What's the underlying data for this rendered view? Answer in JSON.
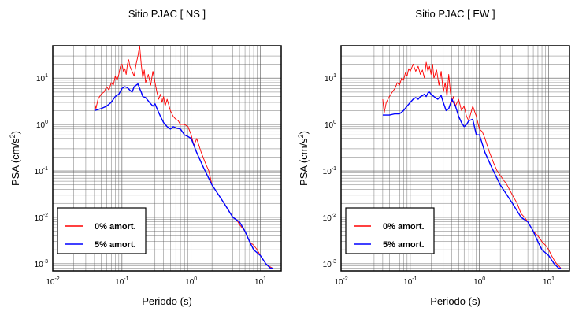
{
  "chart_data": [
    {
      "type": "line",
      "title": "Sitio PJAC [ NS ]",
      "xlabel": "Periodo (s)",
      "ylabel_base": "PSA (cm/s",
      "ylabel_sup": "2",
      "ylabel_end": ")",
      "xscale": "log",
      "yscale": "log",
      "xlim": [
        0.01,
        20
      ],
      "ylim": [
        0.0007,
        50
      ],
      "grid": true,
      "legend_position": "bottom-left",
      "x_ticks": [
        {
          "base": "10",
          "exp": "-2"
        },
        {
          "base": "10",
          "exp": "-1"
        },
        {
          "base": "10",
          "exp": "0"
        },
        {
          "base": "10",
          "exp": "1"
        }
      ],
      "y_ticks": [
        {
          "base": "10",
          "exp": "-3"
        },
        {
          "base": "10",
          "exp": "-2"
        },
        {
          "base": "10",
          "exp": "-1"
        },
        {
          "base": "10",
          "exp": "0"
        },
        {
          "base": "10",
          "exp": "1"
        }
      ],
      "series": [
        {
          "name": "0% amort.",
          "color": "#ff0000",
          "x": [
            0.04,
            0.042,
            0.045,
            0.05,
            0.055,
            0.06,
            0.065,
            0.07,
            0.075,
            0.08,
            0.085,
            0.09,
            0.095,
            0.1,
            0.105,
            0.11,
            0.115,
            0.12,
            0.125,
            0.13,
            0.14,
            0.15,
            0.16,
            0.17,
            0.18,
            0.19,
            0.2,
            0.21,
            0.22,
            0.24,
            0.26,
            0.28,
            0.3,
            0.32,
            0.34,
            0.36,
            0.38,
            0.4,
            0.42,
            0.45,
            0.5,
            0.55,
            0.6,
            0.65,
            0.7,
            0.8,
            0.9,
            1.0,
            1.1,
            1.2,
            1.4,
            1.6,
            1.8,
            2.0,
            2.5,
            3.0,
            3.5,
            4.0,
            4.5,
            5.0,
            6.0,
            7.0,
            8.0,
            9.0,
            10.0,
            11.0,
            12.0,
            13.0,
            14.0,
            15.0
          ],
          "y": [
            3.0,
            2.2,
            3.5,
            4.5,
            5.0,
            6.5,
            5.5,
            8.0,
            7.0,
            11.0,
            9.0,
            12.0,
            18.0,
            20.0,
            14.0,
            16.0,
            12.0,
            20.0,
            25.0,
            18.0,
            14.0,
            11.0,
            20.0,
            30.0,
            50.0,
            20.0,
            10.0,
            15.0,
            8.0,
            12.0,
            7.0,
            14.0,
            8.0,
            5.0,
            3.5,
            4.5,
            3.0,
            4.0,
            2.5,
            3.5,
            2.0,
            1.5,
            1.3,
            1.2,
            1.0,
            1.0,
            0.9,
            0.6,
            0.35,
            0.5,
            0.25,
            0.15,
            0.1,
            0.05,
            0.03,
            0.02,
            0.014,
            0.01,
            0.009,
            0.007,
            0.005,
            0.003,
            0.0025,
            0.002,
            0.0015,
            0.0012,
            0.001,
            0.0009,
            0.00085,
            0.0008
          ]
        },
        {
          "name": "5% amort.",
          "color": "#0000ff",
          "x": [
            0.04,
            0.05,
            0.06,
            0.07,
            0.08,
            0.09,
            0.1,
            0.11,
            0.12,
            0.13,
            0.14,
            0.15,
            0.16,
            0.17,
            0.18,
            0.19,
            0.2,
            0.22,
            0.25,
            0.28,
            0.3,
            0.33,
            0.36,
            0.4,
            0.45,
            0.5,
            0.55,
            0.6,
            0.7,
            0.8,
            0.9,
            1.0,
            1.2,
            1.5,
            2.0,
            2.5,
            3.0,
            4.0,
            5.0,
            6.0,
            7.0,
            8.0,
            10.0,
            12.0,
            14.0,
            15.0
          ],
          "y": [
            2.0,
            2.2,
            2.5,
            3.0,
            4.0,
            4.5,
            6.0,
            6.5,
            6.2,
            5.5,
            5.0,
            6.5,
            7.0,
            7.5,
            6.0,
            5.0,
            4.0,
            3.8,
            3.0,
            2.5,
            2.8,
            2.0,
            1.5,
            1.1,
            0.9,
            0.8,
            0.9,
            0.85,
            0.8,
            0.6,
            0.55,
            0.5,
            0.25,
            0.12,
            0.05,
            0.03,
            0.02,
            0.01,
            0.008,
            0.005,
            0.003,
            0.002,
            0.0015,
            0.001,
            0.0008,
            0.0008
          ]
        }
      ]
    },
    {
      "type": "line",
      "title": "Sitio PJAC [ EW ]",
      "xlabel": "Periodo (s)",
      "ylabel_base": "PSA (cm/s",
      "ylabel_sup": "2",
      "ylabel_end": ")",
      "xscale": "log",
      "yscale": "log",
      "xlim": [
        0.01,
        20
      ],
      "ylim": [
        0.0007,
        50
      ],
      "grid": true,
      "legend_position": "bottom-left",
      "x_ticks": [
        {
          "base": "10",
          "exp": "-2"
        },
        {
          "base": "10",
          "exp": "-1"
        },
        {
          "base": "10",
          "exp": "0"
        },
        {
          "base": "10",
          "exp": "1"
        }
      ],
      "y_ticks": [
        {
          "base": "10",
          "exp": "-3"
        },
        {
          "base": "10",
          "exp": "-2"
        },
        {
          "base": "10",
          "exp": "-1"
        },
        {
          "base": "10",
          "exp": "0"
        },
        {
          "base": "10",
          "exp": "1"
        }
      ],
      "series": [
        {
          "name": "0% amort.",
          "color": "#ff0000",
          "x": [
            0.04,
            0.042,
            0.045,
            0.05,
            0.055,
            0.06,
            0.065,
            0.07,
            0.075,
            0.08,
            0.085,
            0.09,
            0.095,
            0.1,
            0.11,
            0.12,
            0.13,
            0.14,
            0.15,
            0.16,
            0.17,
            0.18,
            0.19,
            0.2,
            0.21,
            0.22,
            0.24,
            0.26,
            0.28,
            0.3,
            0.32,
            0.34,
            0.36,
            0.38,
            0.4,
            0.42,
            0.45,
            0.5,
            0.55,
            0.6,
            0.65,
            0.7,
            0.8,
            0.9,
            1.0,
            1.1,
            1.2,
            1.4,
            1.6,
            1.8,
            2.0,
            2.5,
            3.0,
            3.5,
            4.0,
            4.5,
            5.0,
            6.0,
            7.0,
            8.0,
            9.0,
            10.0,
            11.0,
            12.0,
            13.0,
            14.0,
            15.0
          ],
          "y": [
            3.5,
            1.8,
            3.0,
            4.0,
            5.0,
            6.0,
            8.0,
            7.0,
            10.0,
            9.0,
            13.0,
            11.0,
            16.0,
            14.0,
            20.0,
            14.0,
            18.0,
            12.0,
            15.0,
            10.0,
            22.0,
            14.0,
            18.0,
            12.0,
            20.0,
            10.0,
            15.0,
            7.0,
            14.0,
            5.0,
            8.0,
            4.0,
            12.0,
            5.0,
            3.0,
            4.0,
            2.5,
            3.5,
            2.0,
            2.5,
            1.5,
            1.2,
            2.5,
            1.5,
            0.8,
            0.7,
            0.5,
            0.25,
            0.15,
            0.1,
            0.08,
            0.05,
            0.03,
            0.02,
            0.012,
            0.01,
            0.008,
            0.005,
            0.004,
            0.003,
            0.0025,
            0.002,
            0.0015,
            0.0012,
            0.001,
            0.0009,
            0.0008
          ]
        },
        {
          "name": "5% amort.",
          "color": "#0000ff",
          "x": [
            0.04,
            0.05,
            0.06,
            0.07,
            0.08,
            0.09,
            0.1,
            0.11,
            0.12,
            0.13,
            0.14,
            0.15,
            0.16,
            0.17,
            0.18,
            0.19,
            0.2,
            0.22,
            0.25,
            0.28,
            0.3,
            0.33,
            0.36,
            0.4,
            0.45,
            0.5,
            0.55,
            0.6,
            0.65,
            0.7,
            0.8,
            0.9,
            1.0,
            1.2,
            1.5,
            2.0,
            2.5,
            3.0,
            4.0,
            5.0,
            6.0,
            7.0,
            8.0,
            10.0,
            12.0,
            14.0,
            15.0
          ],
          "y": [
            1.6,
            1.6,
            1.7,
            1.7,
            2.0,
            2.5,
            3.0,
            3.5,
            3.8,
            3.5,
            4.0,
            4.2,
            4.5,
            4.0,
            4.8,
            5.0,
            4.5,
            4.0,
            3.5,
            4.2,
            3.0,
            2.0,
            2.2,
            3.5,
            2.5,
            1.5,
            1.1,
            0.9,
            1.0,
            1.2,
            1.3,
            0.6,
            0.6,
            0.25,
            0.12,
            0.05,
            0.03,
            0.02,
            0.01,
            0.008,
            0.005,
            0.003,
            0.002,
            0.0015,
            0.001,
            0.0008,
            0.0008
          ]
        }
      ]
    }
  ]
}
